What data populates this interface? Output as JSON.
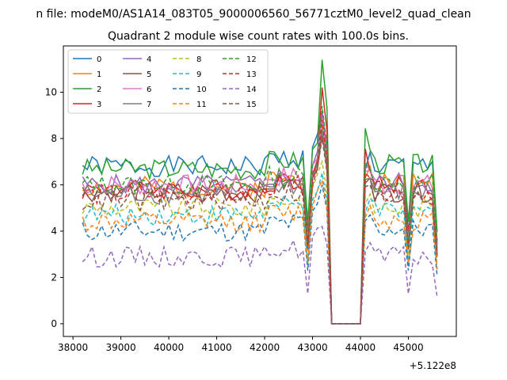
{
  "chart_data": {
    "type": "line",
    "suptitle": "n file: modeM0/AS1A14_083T05_9000006560_56771cztM0_level2_quad_clean",
    "title": "Quadrant 2 module wise count rates with 100.0s bins.",
    "xlabel": "",
    "ylabel": "",
    "x_offset_label": "+5.122e8",
    "xlim": [
      37800,
      46000
    ],
    "ylim": [
      -0.55,
      12.0
    ],
    "xticks": [
      38000,
      39000,
      40000,
      41000,
      42000,
      43000,
      44000,
      45000
    ],
    "yticks": [
      0,
      2,
      4,
      6,
      8,
      10
    ],
    "grid": false,
    "legend_position": "top-left",
    "legend_columns": 4,
    "x_start": 38200,
    "x_step": 100,
    "gap": {
      "from": 43400,
      "to": 44000
    },
    "series": [
      {
        "name": "0",
        "color": "#1f77b4",
        "style": "solid",
        "base": 6.8,
        "dip": 3.8,
        "peak": 9.0,
        "after": 6.8,
        "seed": 1
      },
      {
        "name": "1",
        "color": "#ff7f0e",
        "style": "solid",
        "base": 5.9,
        "dip": 3.3,
        "peak": 8.5,
        "after": 6.2,
        "seed": 2
      },
      {
        "name": "2",
        "color": "#2ca02c",
        "style": "solid",
        "base": 6.7,
        "dip": 4.4,
        "peak": 11.4,
        "after": 6.9,
        "seed": 3
      },
      {
        "name": "3",
        "color": "#d62728",
        "style": "solid",
        "base": 5.8,
        "dip": 4.0,
        "peak": 10.2,
        "after": 6.0,
        "seed": 4
      },
      {
        "name": "4",
        "color": "#9467bd",
        "style": "solid",
        "base": 6.0,
        "dip": 3.5,
        "peak": 9.2,
        "after": 6.1,
        "seed": 5
      },
      {
        "name": "5",
        "color": "#8c564b",
        "style": "solid",
        "base": 5.7,
        "dip": 3.2,
        "peak": 8.2,
        "after": 5.7,
        "seed": 6
      },
      {
        "name": "6",
        "color": "#e377c2",
        "style": "solid",
        "base": 6.0,
        "dip": 3.6,
        "peak": 8.9,
        "after": 6.0,
        "seed": 7
      },
      {
        "name": "7",
        "color": "#7f7f7f",
        "style": "solid",
        "base": 5.6,
        "dip": 3.3,
        "peak": 8.4,
        "after": 5.7,
        "seed": 8
      },
      {
        "name": "8",
        "color": "#bcbd22",
        "style": "dashed",
        "base": 5.0,
        "dip": 2.8,
        "peak": 7.0,
        "after": 5.0,
        "seed": 9
      },
      {
        "name": "9",
        "color": "#17becf",
        "style": "dashed",
        "base": 4.7,
        "dip": 2.6,
        "peak": 6.5,
        "after": 4.8,
        "seed": 10
      },
      {
        "name": "10",
        "color": "#1f77b4",
        "style": "dashed",
        "base": 4.0,
        "dip": 2.3,
        "peak": 6.0,
        "after": 4.1,
        "seed": 11
      },
      {
        "name": "11",
        "color": "#ff7f0e",
        "style": "dashed",
        "base": 4.4,
        "dip": 2.6,
        "peak": 6.2,
        "after": 4.5,
        "seed": 12
      },
      {
        "name": "12",
        "color": "#2ca02c",
        "style": "dashed",
        "base": 6.0,
        "dip": 3.5,
        "peak": 9.4,
        "after": 6.1,
        "seed": 13
      },
      {
        "name": "13",
        "color": "#d62728",
        "style": "dashed",
        "base": 5.6,
        "dip": 3.3,
        "peak": 8.8,
        "after": 5.7,
        "seed": 14
      },
      {
        "name": "14",
        "color": "#9467bd",
        "style": "dashed",
        "base": 2.9,
        "dip": 1.3,
        "peak": 4.2,
        "after": 2.9,
        "seed": 15
      },
      {
        "name": "15",
        "color": "#8c564b",
        "style": "dashed",
        "base": 5.3,
        "dip": 3.2,
        "peak": 8.0,
        "after": 5.4,
        "seed": 16
      }
    ]
  }
}
